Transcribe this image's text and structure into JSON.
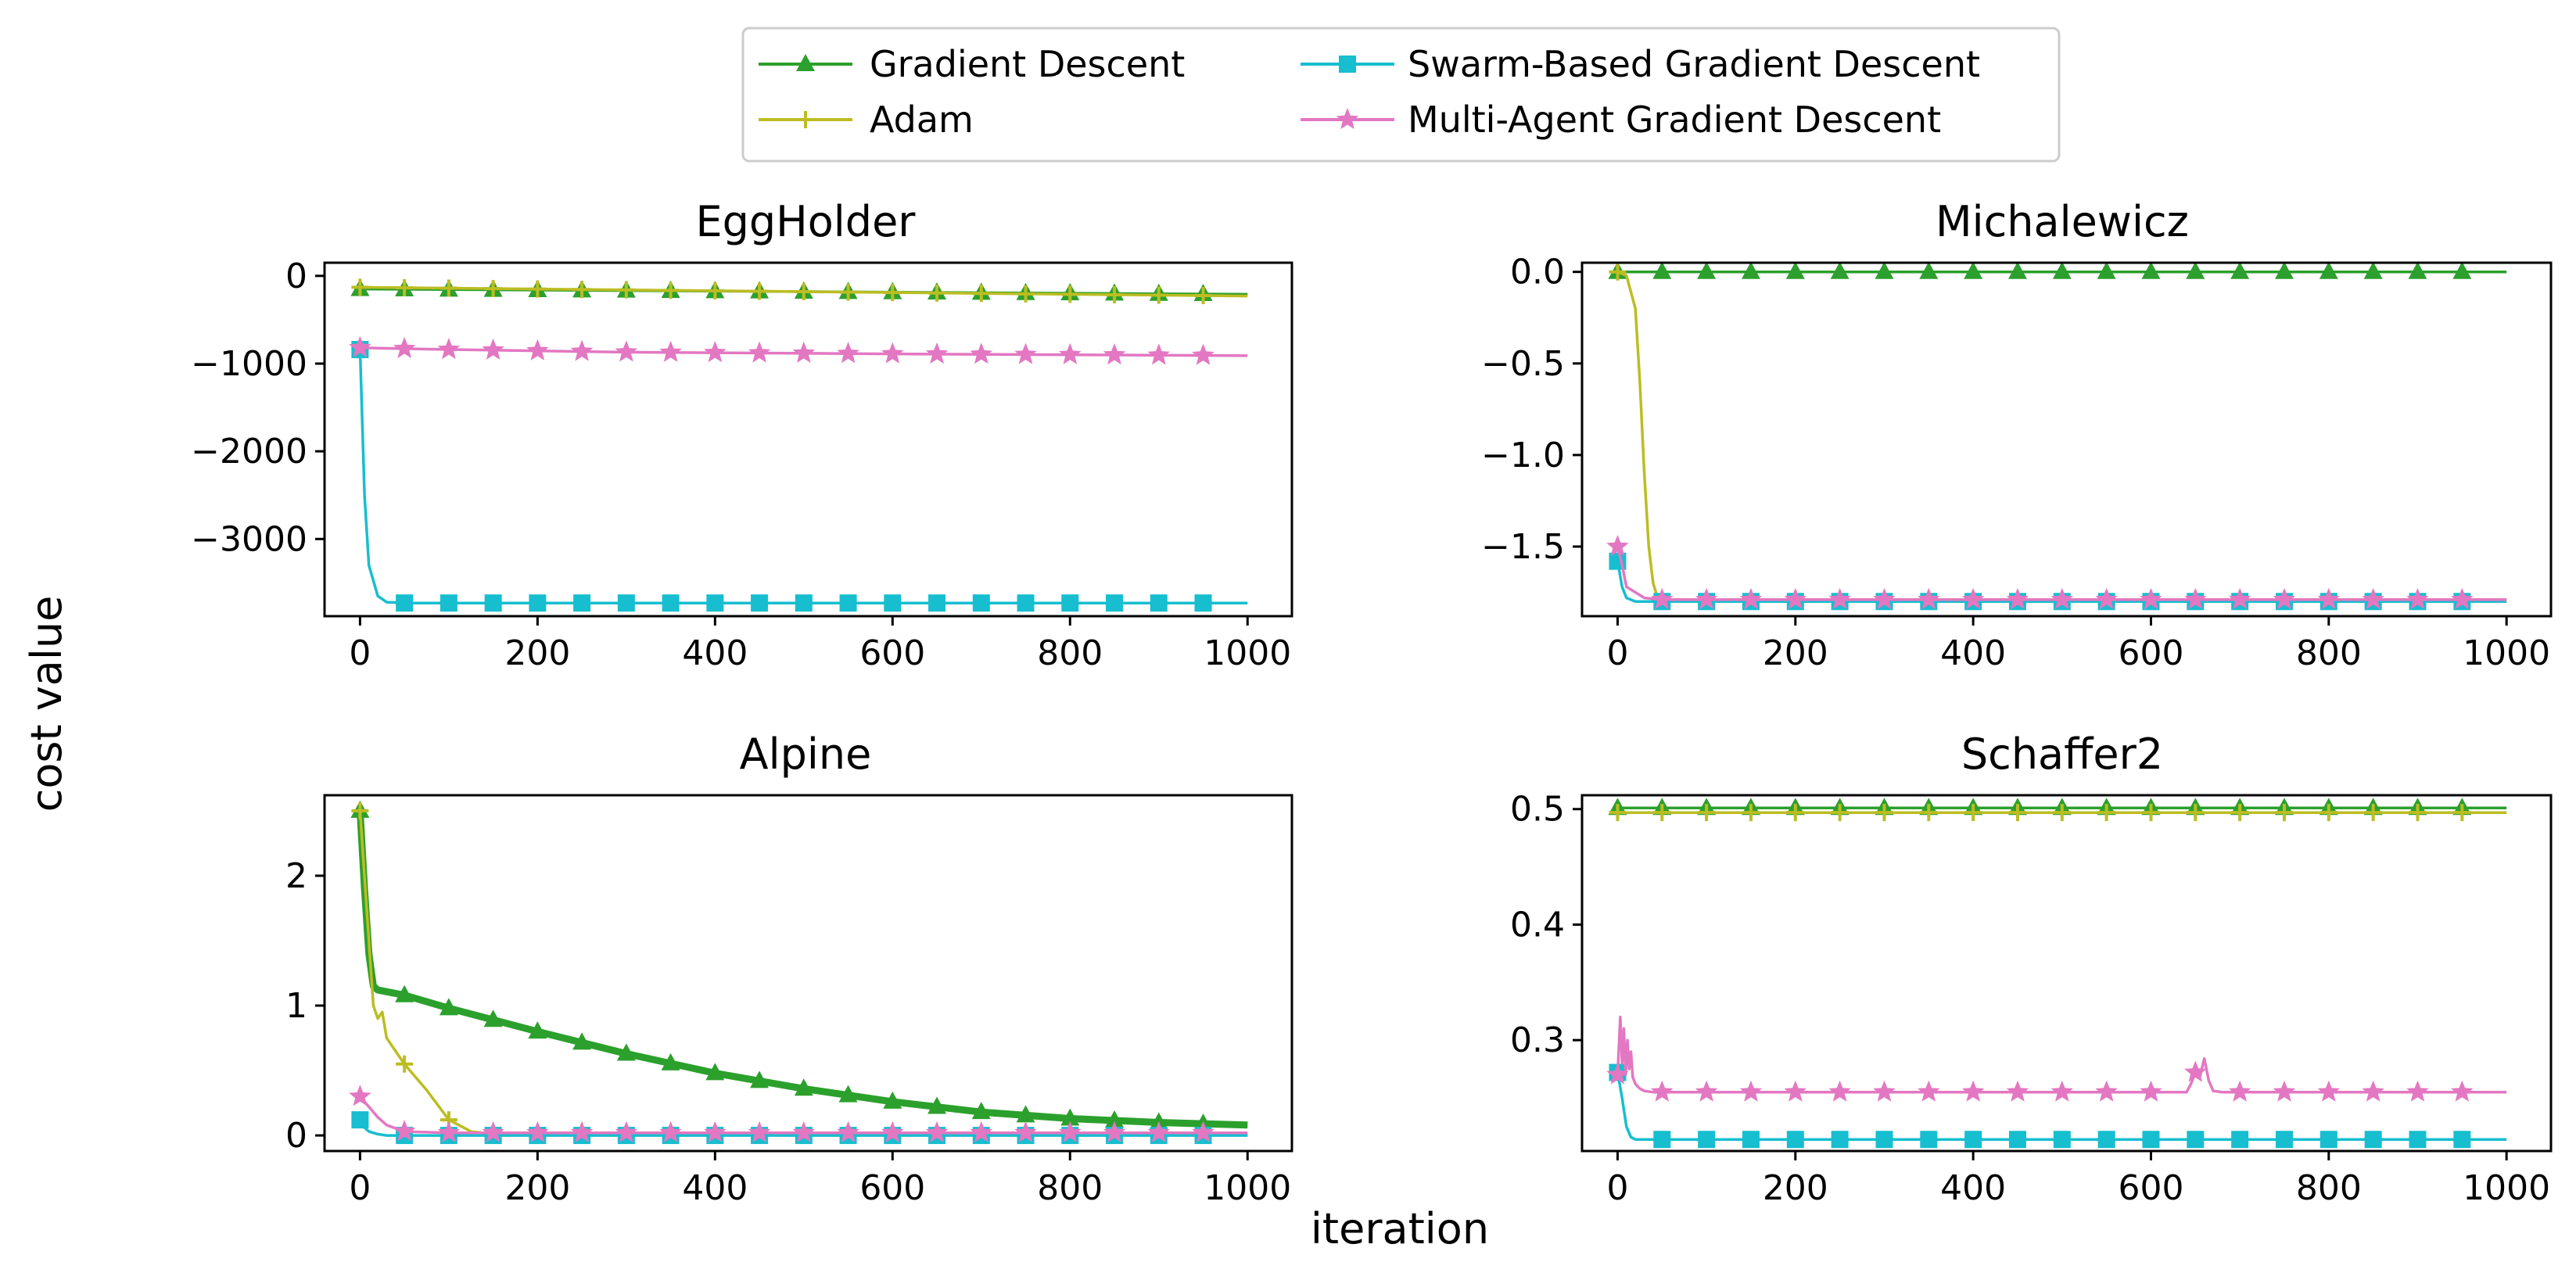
{
  "colors": {
    "gd": "#2ca02c",
    "adam": "#bcbd22",
    "sbgd": "#17becf",
    "magd": "#e377c2"
  },
  "legend": {
    "items": [
      {
        "key": "gd",
        "label": "Gradient Descent",
        "marker": "triangle"
      },
      {
        "key": "adam",
        "label": "Adam",
        "marker": "plus"
      },
      {
        "key": "sbgd",
        "label": "Swarm-Based Gradient Descent",
        "marker": "square"
      },
      {
        "key": "magd",
        "label": "Multi-Agent Gradient Descent",
        "marker": "star"
      }
    ]
  },
  "labels": {
    "xlabel": "iteration",
    "ylabel": "cost value"
  },
  "chart_data": [
    {
      "type": "line",
      "title": "EggHolder",
      "xlim": [
        -40,
        1050
      ],
      "ylim": [
        -3880,
        150
      ],
      "xticks": [
        0,
        200,
        400,
        600,
        800,
        1000
      ],
      "yticks": [
        0,
        -1000,
        -2000,
        -3000
      ],
      "ytick_labels": [
        "0",
        "−1000",
        "−2000",
        "−3000"
      ],
      "series": [
        {
          "key": "gd",
          "name": "Gradient Descent",
          "x": [
            0,
            1000
          ],
          "y": [
            -150,
            -210
          ]
        },
        {
          "key": "adam",
          "name": "Adam",
          "x": [
            0,
            1000
          ],
          "y": [
            -130,
            -230
          ]
        },
        {
          "key": "sbgd",
          "name": "Swarm-Based Gradient Descent",
          "x": [
            0,
            5,
            10,
            20,
            30,
            50,
            1000
          ],
          "y": [
            -840,
            -2500,
            -3300,
            -3650,
            -3720,
            -3730,
            -3730
          ]
        },
        {
          "key": "magd",
          "name": "Multi-Agent Gradient Descent",
          "x": [
            0,
            100,
            300,
            600,
            1000
          ],
          "y": [
            -820,
            -840,
            -870,
            -890,
            -910
          ]
        }
      ]
    },
    {
      "type": "line",
      "title": "Michalewicz",
      "xlim": [
        -40,
        1050
      ],
      "ylim": [
        -1.88,
        0.05
      ],
      "xticks": [
        0,
        200,
        400,
        600,
        800,
        1000
      ],
      "yticks": [
        0.0,
        -0.5,
        -1.0,
        -1.5
      ],
      "ytick_labels": [
        "0.0",
        "−0.5",
        "−1.0",
        "−1.5"
      ],
      "series": [
        {
          "key": "gd",
          "name": "Gradient Descent",
          "x": [
            0,
            1000
          ],
          "y": [
            0.0,
            0.0
          ]
        },
        {
          "key": "adam",
          "name": "Adam",
          "x": [
            0,
            10,
            20,
            25,
            30,
            35,
            40,
            45,
            50,
            1000
          ],
          "y": [
            0.0,
            -0.02,
            -0.2,
            -0.6,
            -1.1,
            -1.5,
            -1.7,
            -1.78,
            -1.79,
            -1.79
          ]
        },
        {
          "key": "sbgd",
          "name": "Swarm-Based Gradient Descent",
          "x": [
            0,
            5,
            10,
            20,
            50,
            1000
          ],
          "y": [
            -1.58,
            -1.72,
            -1.78,
            -1.8,
            -1.8,
            -1.8
          ]
        },
        {
          "key": "magd",
          "name": "Multi-Agent Gradient Descent",
          "x": [
            0,
            5,
            10,
            30,
            50,
            1000
          ],
          "y": [
            -1.5,
            -1.6,
            -1.72,
            -1.78,
            -1.79,
            -1.79
          ]
        }
      ]
    },
    {
      "type": "line",
      "title": "Alpine",
      "xlim": [
        -40,
        1050
      ],
      "ylim": [
        -0.12,
        2.62
      ],
      "xticks": [
        0,
        200,
        400,
        600,
        800,
        1000
      ],
      "yticks": [
        0,
        1,
        2
      ],
      "ytick_labels": [
        "0",
        "1",
        "2"
      ],
      "series": [
        {
          "key": "gd",
          "name": "Gradient Descent",
          "x": [
            0,
            5,
            10,
            15,
            20,
            50,
            100,
            200,
            300,
            400,
            500,
            600,
            700,
            800,
            900,
            1000
          ],
          "y": [
            2.5,
            1.9,
            1.4,
            1.15,
            1.12,
            1.08,
            0.98,
            0.8,
            0.63,
            0.48,
            0.36,
            0.26,
            0.18,
            0.13,
            0.1,
            0.08
          ]
        },
        {
          "key": "adam",
          "name": "Adam",
          "x": [
            0,
            10,
            15,
            20,
            25,
            30,
            50,
            75,
            100,
            125,
            150,
            1000
          ],
          "y": [
            2.5,
            1.5,
            1.0,
            0.9,
            0.95,
            0.75,
            0.55,
            0.35,
            0.12,
            0.03,
            0.01,
            0.01
          ]
        },
        {
          "key": "sbgd",
          "name": "Swarm-Based Gradient Descent",
          "x": [
            0,
            5,
            10,
            20,
            30,
            50,
            1000
          ],
          "y": [
            0.12,
            0.06,
            0.03,
            0.01,
            0.0,
            0.0,
            0.0
          ]
        },
        {
          "key": "magd",
          "name": "Multi-Agent Gradient Descent",
          "x": [
            0,
            10,
            20,
            30,
            50,
            100,
            1000
          ],
          "y": [
            0.3,
            0.22,
            0.14,
            0.08,
            0.03,
            0.02,
            0.02
          ]
        }
      ]
    },
    {
      "type": "line",
      "title": "Schaffer2",
      "xlim": [
        -40,
        1050
      ],
      "ylim": [
        0.204,
        0.512
      ],
      "xticks": [
        0,
        200,
        400,
        600,
        800,
        1000
      ],
      "yticks": [
        0.5,
        0.4,
        0.3
      ],
      "ytick_labels": [
        "0.5",
        "0.4",
        "0.3"
      ],
      "series": [
        {
          "key": "gd",
          "name": "Gradient Descent",
          "x": [
            0,
            1000
          ],
          "y": [
            0.501,
            0.501
          ]
        },
        {
          "key": "adam",
          "name": "Adam",
          "x": [
            0,
            1000
          ],
          "y": [
            0.497,
            0.497
          ]
        },
        {
          "key": "sbgd",
          "name": "Swarm-Based Gradient Descent",
          "x": [
            0,
            5,
            10,
            15,
            20,
            50,
            1000
          ],
          "y": [
            0.272,
            0.25,
            0.225,
            0.216,
            0.214,
            0.214,
            0.214
          ]
        },
        {
          "key": "magd",
          "name": "Multi-Agent Gradient Descent",
          "x": [
            0,
            3,
            5,
            7,
            9,
            11,
            13,
            15,
            17,
            20,
            25,
            30,
            40,
            50,
            640,
            645,
            650,
            655,
            660,
            665,
            670,
            680,
            1000
          ],
          "y": [
            0.27,
            0.32,
            0.28,
            0.31,
            0.27,
            0.3,
            0.275,
            0.29,
            0.268,
            0.262,
            0.258,
            0.256,
            0.255,
            0.255,
            0.255,
            0.262,
            0.272,
            0.268,
            0.284,
            0.265,
            0.256,
            0.255,
            0.255
          ]
        }
      ]
    }
  ]
}
